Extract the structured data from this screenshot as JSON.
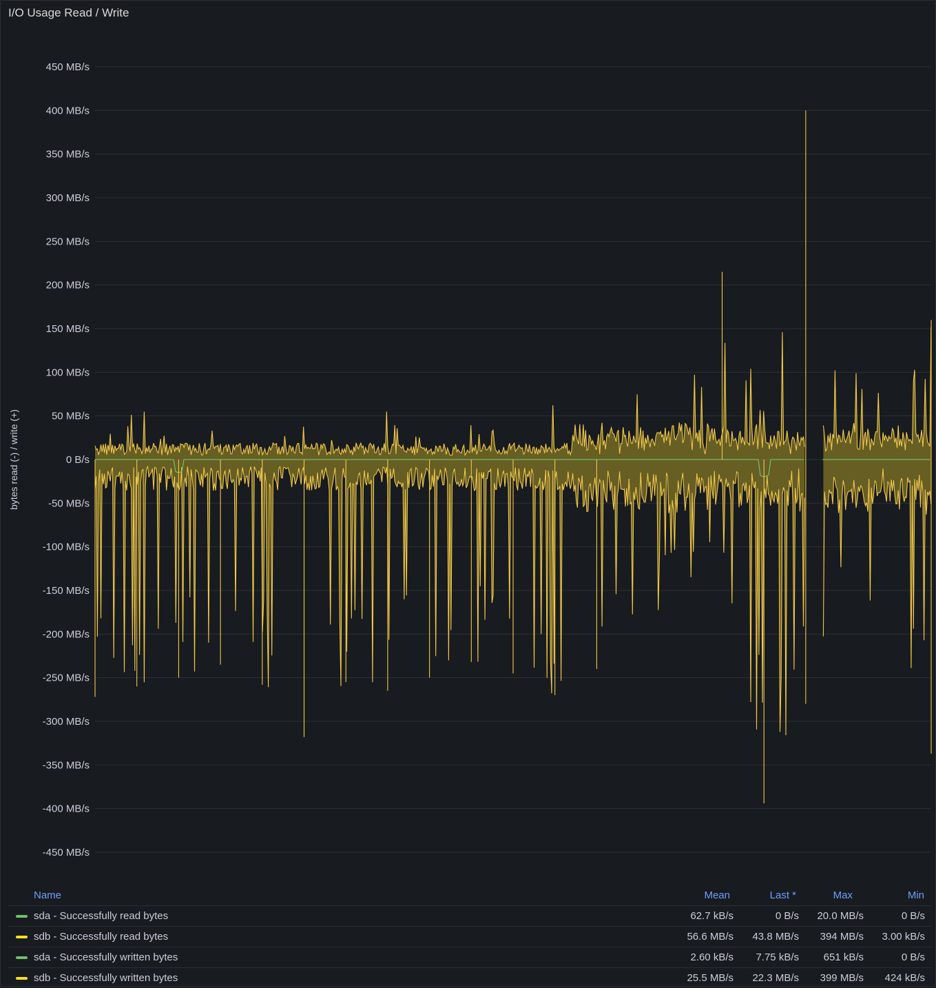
{
  "panel": {
    "title": "I/O Usage Read / Write"
  },
  "chart_data": {
    "type": "line",
    "title": "I/O Usage Read / Write",
    "ylabel": "bytes read (-) / write (+)",
    "xlabel": "",
    "ylim": [
      -450,
      450
    ],
    "yunit": "MB/s",
    "ytick_labels": [
      "450 MB/s",
      "400 MB/s",
      "350 MB/s",
      "300 MB/s",
      "250 MB/s",
      "200 MB/s",
      "150 MB/s",
      "100 MB/s",
      "50 MB/s",
      "0 B/s",
      "-50 MB/s",
      "-100 MB/s",
      "-150 MB/s",
      "-200 MB/s",
      "-250 MB/s",
      "-300 MB/s",
      "-350 MB/s",
      "-400 MB/s",
      "-450 MB/s"
    ],
    "ytick_values": [
      450,
      400,
      350,
      300,
      250,
      200,
      150,
      100,
      50,
      0,
      -50,
      -100,
      -150,
      -200,
      -250,
      -300,
      -350,
      -400,
      -450
    ],
    "grid": true,
    "legend_position": "bottom",
    "x": [
      0,
      5,
      10,
      15,
      20,
      25,
      30,
      35,
      40,
      45,
      50,
      55,
      60,
      65,
      70,
      75,
      80,
      85,
      90,
      95,
      100
    ],
    "series": [
      {
        "name": "sdb - Successfully written bytes",
        "color": "#fade2a",
        "sign": 1,
        "values": [
          10,
          72,
          15,
          55,
          12,
          60,
          18,
          70,
          12,
          60,
          15,
          65,
          20,
          90,
          40,
          215,
          60,
          400,
          90,
          140,
          160
        ]
      },
      {
        "name": "sdb - Successfully read bytes",
        "color": "#fade2a",
        "sign": -1,
        "values": [
          -272,
          -260,
          -250,
          -235,
          -258,
          -318,
          -255,
          -265,
          -250,
          -232,
          -245,
          -270,
          -240,
          -190,
          -155,
          -120,
          -394,
          -280,
          -180,
          -200,
          -337
        ]
      },
      {
        "name": "sda - Successfully read bytes",
        "color": "#73bf69",
        "sign": -1,
        "values": [
          0,
          0,
          -15,
          0,
          0,
          0,
          0,
          0,
          0,
          0,
          0,
          0,
          0,
          0,
          0,
          0,
          -20,
          0,
          0,
          0,
          0
        ]
      },
      {
        "name": "sda - Successfully written bytes",
        "color": "#73bf69",
        "sign": 1,
        "values": [
          0,
          0,
          0,
          0,
          0,
          0,
          0,
          0,
          0,
          0,
          0,
          0,
          0,
          0,
          0,
          0,
          0,
          0,
          0,
          0,
          0
        ]
      }
    ],
    "gap": [
      85,
      87
    ]
  },
  "legend": {
    "headers": {
      "name": "Name",
      "mean": "Mean",
      "last": "Last *",
      "max": "Max",
      "min": "Min"
    },
    "rows": [
      {
        "name": "sda - Successfully read bytes",
        "color": "#73bf69",
        "mean": "62.7 kB/s",
        "last": "0 B/s",
        "max": "20.0 MB/s",
        "min": "0 B/s"
      },
      {
        "name": "sdb - Successfully read bytes",
        "color": "#fade2a",
        "mean": "56.6 MB/s",
        "last": "43.8 MB/s",
        "max": "394 MB/s",
        "min": "3.00 kB/s"
      },
      {
        "name": "sda - Successfully written bytes",
        "color": "#73bf69",
        "mean": "2.60 kB/s",
        "last": "7.75 kB/s",
        "max": "651 kB/s",
        "min": "0 B/s"
      },
      {
        "name": "sdb - Successfully written bytes",
        "color": "#fade2a",
        "mean": "25.5 MB/s",
        "last": "22.3 MB/s",
        "max": "399 MB/s",
        "min": "424 kB/s"
      }
    ]
  }
}
